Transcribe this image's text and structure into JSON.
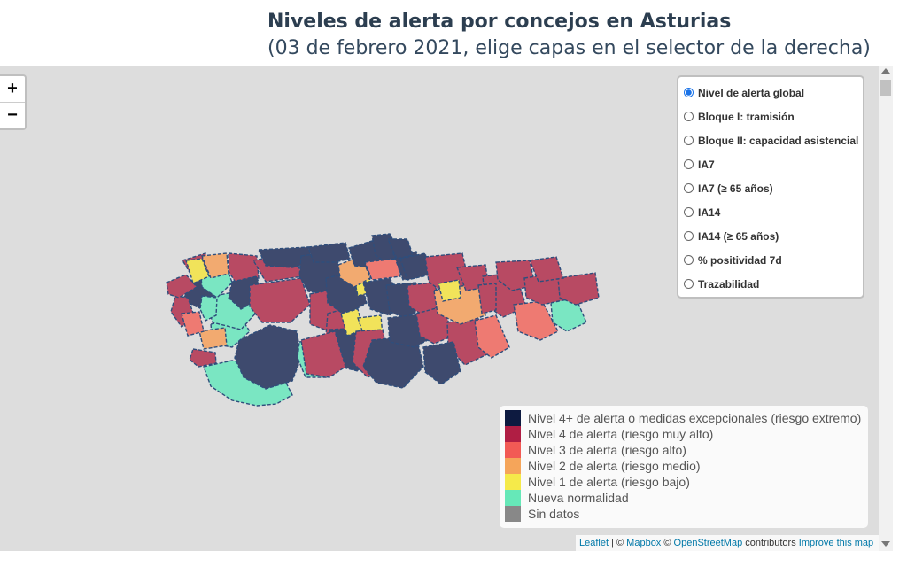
{
  "header": {
    "title": "Niveles de alerta por concejos en Asturias",
    "subtitle": "(03 de febrero 2021, elige capas en el selector de la derecha)"
  },
  "zoom": {
    "in_label": "+",
    "out_label": "−"
  },
  "layers": {
    "items": [
      {
        "label": "Nivel de alerta global",
        "checked": true
      },
      {
        "label": "Bloque I: tramisión",
        "checked": false
      },
      {
        "label": "Bloque II: capacidad asistencial",
        "checked": false
      },
      {
        "label": "IA7",
        "checked": false
      },
      {
        "label": "IA7 (≥ 65 años)",
        "checked": false
      },
      {
        "label": "IA14",
        "checked": false
      },
      {
        "label": "IA14 (≥ 65 años)",
        "checked": false
      },
      {
        "label": "% positividad 7d",
        "checked": false
      },
      {
        "label": "Trazabilidad",
        "checked": false
      }
    ]
  },
  "legend": {
    "items": [
      {
        "label": "Nivel 4+ de alerta o medidas excepcionales (riesgo extremo)",
        "color": "#0d1a40"
      },
      {
        "label": "Nivel 4 de alerta (riesgo muy alto)",
        "color": "#b01e44"
      },
      {
        "label": "Nivel 3 de alerta (riesgo alto)",
        "color": "#f25a55"
      },
      {
        "label": "Nivel 2 de alerta (riesgo medio)",
        "color": "#f5a55a"
      },
      {
        "label": "Nivel 1 de alerta (riesgo bajo)",
        "color": "#f5ea4a"
      },
      {
        "label": "Nueva normalidad",
        "color": "#66e8b8"
      },
      {
        "label": "Sin datos",
        "color": "#888888"
      }
    ]
  },
  "attribution": {
    "leaflet": "Leaflet",
    "sep": " | © ",
    "mapbox": "Mapbox",
    "copy": " © ",
    "osm": "OpenStreetMap",
    "contributors": " contributors ",
    "improve": "Improve this map"
  },
  "map_colors": {
    "extreme": "#3e4a6e",
    "very_high": "#b84a63",
    "high": "#ee7a72",
    "medium": "#f2aa70",
    "low": "#f1e35a",
    "normal": "#7ae6c2"
  }
}
